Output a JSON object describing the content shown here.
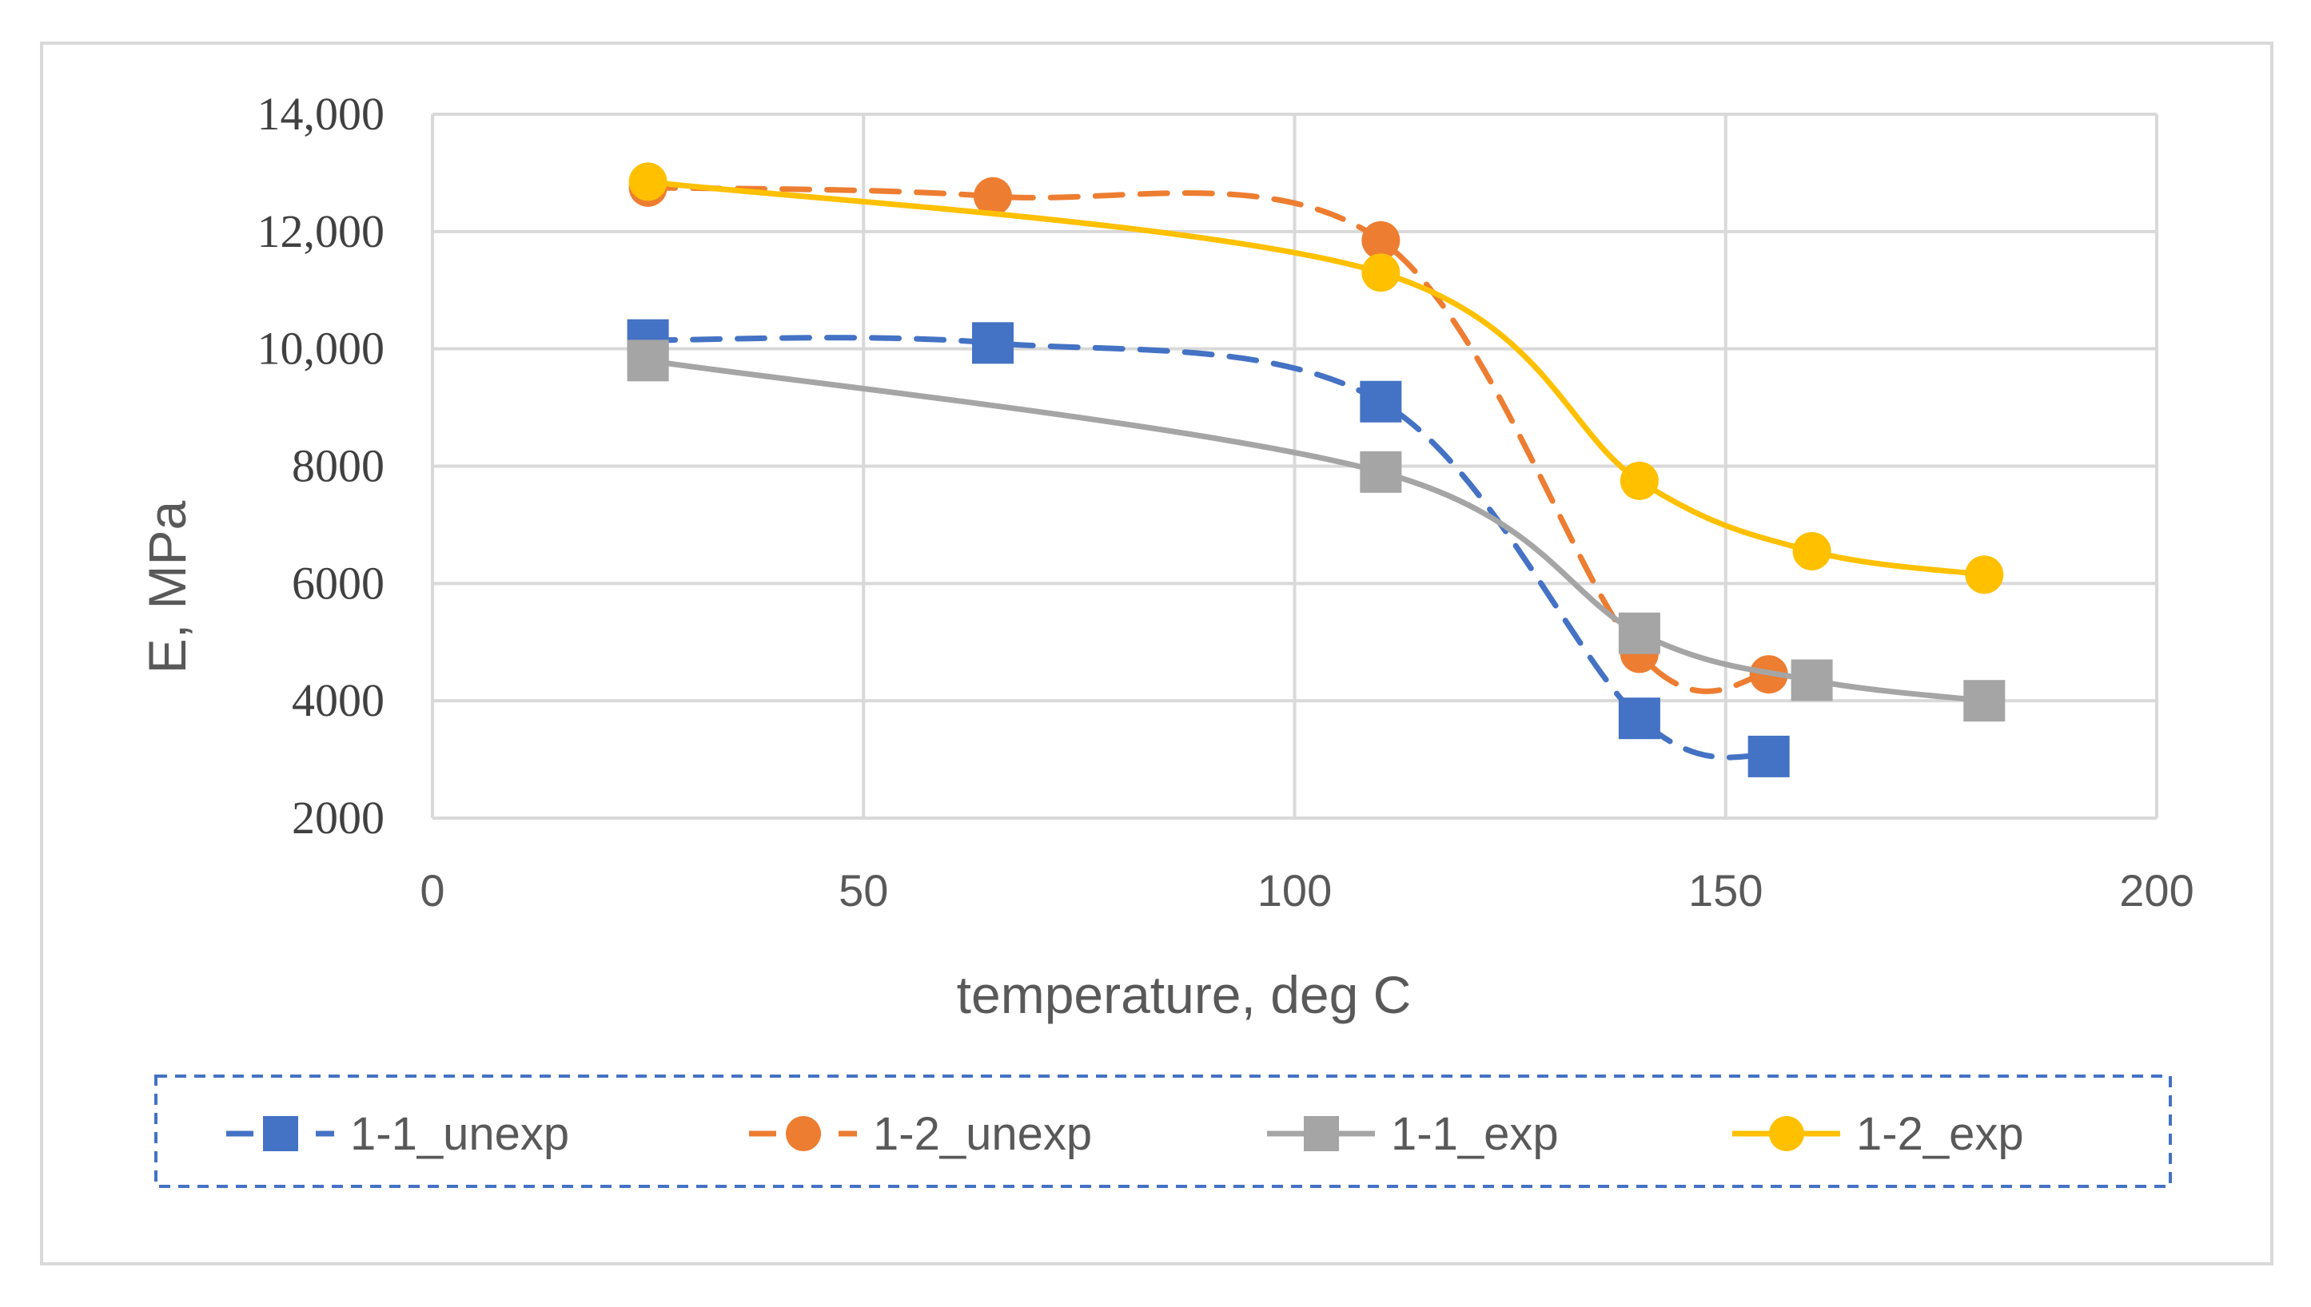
{
  "chart_data": {
    "type": "line",
    "title": "",
    "xlabel": "temperature, deg C",
    "ylabel": "E, MPa",
    "xlim": [
      0,
      200
    ],
    "ylim": [
      2000,
      14000
    ],
    "x_ticks": [
      0,
      50,
      100,
      150,
      200
    ],
    "x_tick_labels": [
      "0",
      "50",
      "100",
      "150",
      "200"
    ],
    "y_ticks": [
      2000,
      4000,
      6000,
      8000,
      10000,
      12000,
      14000
    ],
    "y_tick_labels": [
      "2000",
      "4000",
      "6000",
      "8000",
      "10,000",
      "12,000",
      "14,000"
    ],
    "grid": true,
    "legend_position": "bottom",
    "series": [
      {
        "name": "1-1_unexp",
        "color": "#4472C4",
        "dash": "dashed",
        "marker": "square",
        "x": [
          25,
          65,
          110,
          140,
          155
        ],
        "y": [
          10150,
          10100,
          9100,
          3700,
          3050
        ]
      },
      {
        "name": "1-2_unexp",
        "color": "#ED7D31",
        "dash": "dashed",
        "marker": "circle",
        "x": [
          25,
          65,
          110,
          140,
          155
        ],
        "y": [
          12750,
          12600,
          11850,
          4800,
          4450
        ]
      },
      {
        "name": "1-1_exp",
        "color": "#A5A5A5",
        "dash": "solid",
        "marker": "square",
        "x": [
          25,
          110,
          140,
          160,
          180
        ],
        "y": [
          9800,
          7900,
          5150,
          4350,
          4000
        ]
      },
      {
        "name": "1-2_exp",
        "color": "#FFC000",
        "dash": "solid",
        "marker": "circle",
        "x": [
          25,
          110,
          140,
          160,
          180
        ],
        "y": [
          12850,
          11300,
          7750,
          6550,
          6150
        ]
      }
    ]
  }
}
